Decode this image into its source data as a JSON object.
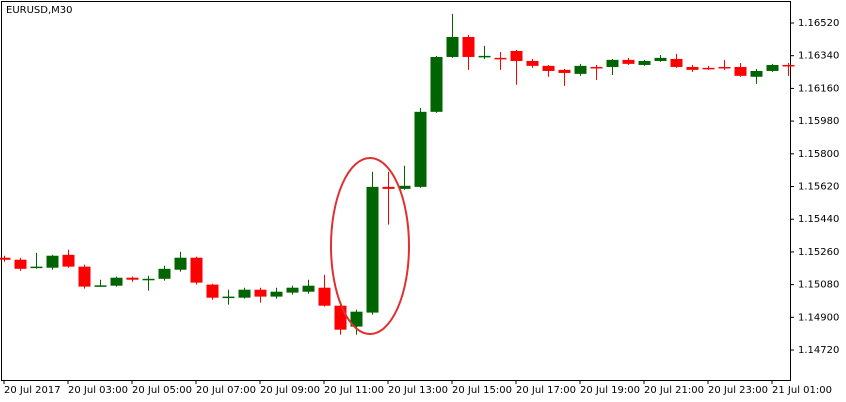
{
  "chart_data": {
    "type": "candlestick",
    "title": "EURUSD,M30",
    "categories": [
      "20 Jul 2017",
      null,
      null,
      null,
      "20 Jul 03:00",
      null,
      null,
      null,
      "20 Jul 05:00",
      null,
      null,
      null,
      "20 Jul 07:00",
      null,
      null,
      null,
      "20 Jul 09:00",
      null,
      null,
      null,
      "20 Jul 11:00",
      null,
      null,
      null,
      "20 Jul 13:00",
      null,
      null,
      null,
      "20 Jul 15:00",
      null,
      null,
      null,
      "20 Jul 17:00",
      null,
      null,
      null,
      "20 Jul 19:00",
      null,
      null,
      null,
      "20 Jul 21:00",
      null,
      null,
      null,
      "20 Jul 23:00",
      null,
      null,
      null,
      "21 Jul 01:00",
      null
    ],
    "open": [
      1.15228,
      1.15217,
      1.15173,
      1.15173,
      1.15244,
      1.15179,
      1.15074,
      1.15074,
      1.15118,
      1.15107,
      1.15112,
      1.15162,
      1.15228,
      1.1508,
      1.15008,
      1.15008,
      1.15052,
      1.15014,
      1.15036,
      1.15041,
      1.15063,
      1.14964,
      1.14849,
      1.14926,
      1.15618,
      1.15607,
      1.15618,
      1.16031,
      1.16333,
      1.16443,
      1.16333,
      1.16328,
      1.16366,
      1.16311,
      1.16284,
      1.16262,
      1.1624,
      1.16278,
      1.16278,
      1.16317,
      1.16289,
      1.16311,
      1.16322,
      1.16278,
      1.16273,
      1.16278,
      1.16278,
      1.16224,
      1.16256,
      1.16289
    ],
    "high": [
      1.15239,
      1.15228,
      1.15255,
      1.15244,
      1.15272,
      1.1519,
      1.15107,
      1.15124,
      1.15124,
      1.15129,
      1.15184,
      1.15261,
      1.15234,
      1.15085,
      1.15052,
      1.15063,
      1.15063,
      1.15063,
      1.15074,
      1.15107,
      1.15134,
      1.14986,
      1.14942,
      1.15701,
      1.15701,
      1.15734,
      1.16053,
      1.16339,
      1.1657,
      1.16454,
      1.16394,
      1.16361,
      1.16372,
      1.16322,
      1.16289,
      1.16267,
      1.16295,
      1.16289,
      1.16322,
      1.16328,
      1.16317,
      1.16344,
      1.1635,
      1.16289,
      1.16284,
      1.16317,
      1.163,
      1.16267,
      1.16295,
      1.163
    ],
    "low": [
      1.15206,
      1.15156,
      1.15167,
      1.15162,
      1.15173,
      1.15058,
      1.15069,
      1.15069,
      1.15096,
      1.15047,
      1.15102,
      1.15151,
      1.1508,
      1.14997,
      1.1497,
      1.15003,
      1.14981,
      1.15003,
      1.15025,
      1.1503,
      1.14959,
      1.14805,
      1.14805,
      1.14915,
      1.1541,
      1.15602,
      1.15613,
      1.16025,
      1.16328,
      1.16262,
      1.16322,
      1.16262,
      1.1618,
      1.16273,
      1.16224,
      1.16174,
      1.16229,
      1.16207,
      1.16234,
      1.16289,
      1.16284,
      1.16306,
      1.16273,
      1.16251,
      1.16262,
      1.16262,
      1.16224,
      1.16185,
      1.16251,
      1.16229
    ],
    "close": [
      1.15217,
      1.15167,
      1.15179,
      1.15239,
      1.15179,
      1.15069,
      1.15076,
      1.15118,
      1.15107,
      1.15112,
      1.15167,
      1.15228,
      1.15091,
      1.15008,
      1.15014,
      1.15052,
      1.15014,
      1.15041,
      1.15063,
      1.15074,
      1.14964,
      1.14832,
      1.14931,
      1.15618,
      1.15607,
      1.15624,
      1.16031,
      1.16333,
      1.16443,
      1.16333,
      1.16339,
      1.16325,
      1.16311,
      1.16284,
      1.16256,
      1.16245,
      1.16284,
      1.16273,
      1.16317,
      1.16295,
      1.16311,
      1.16328,
      1.16278,
      1.16262,
      1.16271,
      1.16276,
      1.16229,
      1.16256,
      1.16289,
      1.16284
    ],
    "up_color": "#006400",
    "down_color": "#ff0000",
    "ylim": [
      1.14555,
      1.16619
    ],
    "yticks": [
      {
        "value": 1.1652,
        "label": "1.16520"
      },
      {
        "value": 1.1634,
        "label": "1.16340"
      },
      {
        "value": 1.1616,
        "label": "1.16160"
      },
      {
        "value": 1.1598,
        "label": "1.15980"
      },
      {
        "value": 1.158,
        "label": "1.15800"
      },
      {
        "value": 1.1562,
        "label": "1.15620"
      },
      {
        "value": 1.1544,
        "label": "1.15440"
      },
      {
        "value": 1.1526,
        "label": "1.15260"
      },
      {
        "value": 1.1508,
        "label": "1.15080"
      },
      {
        "value": 1.149,
        "label": "1.14900"
      },
      {
        "value": 1.1472,
        "label": "1.14720"
      }
    ],
    "grid": false
  }
}
